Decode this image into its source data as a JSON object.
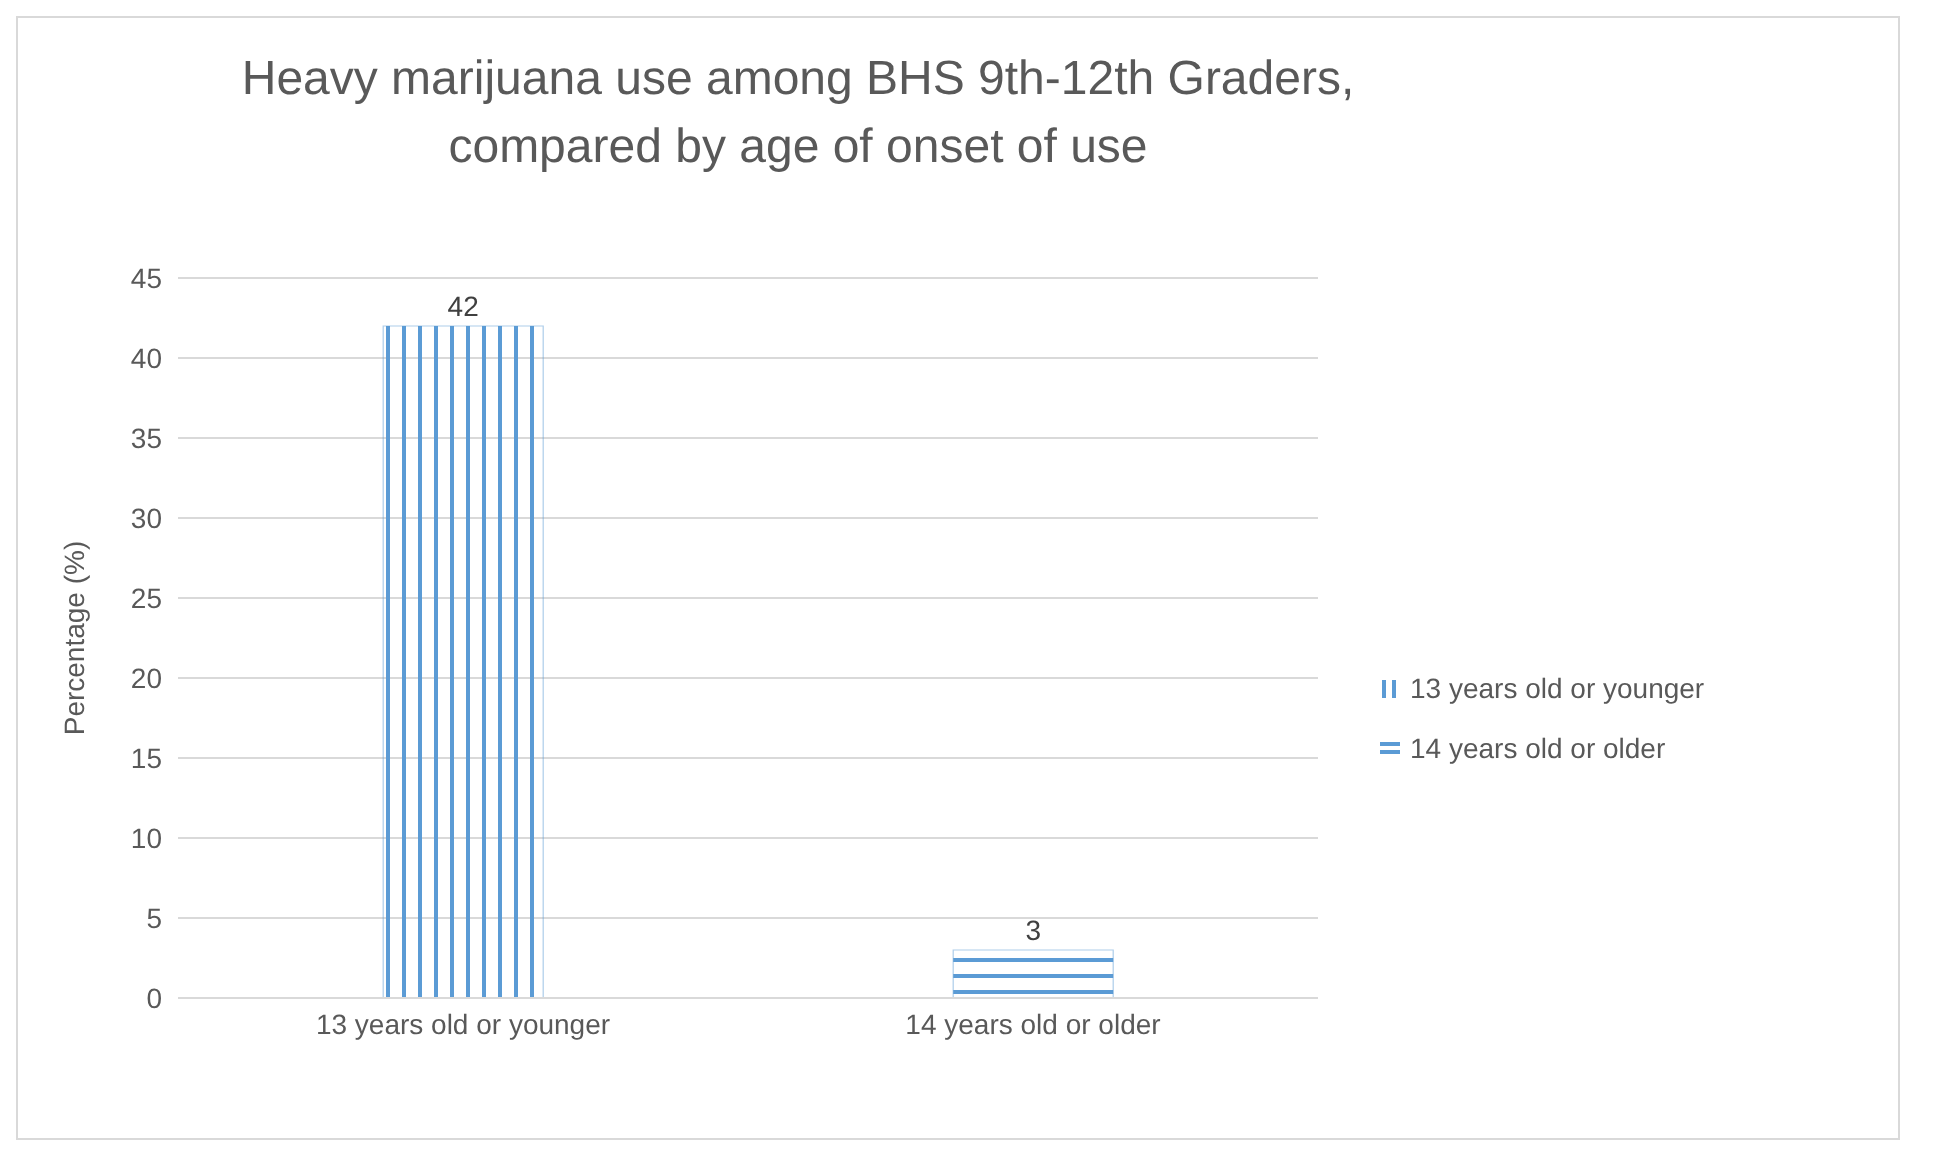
{
  "chart_data": {
    "type": "bar",
    "title": "Heavy marijuana use among BHS 9th-12th Graders, compared by age of onset of use",
    "ylabel": "Percentage (%)",
    "categories": [
      "13 years old or younger",
      "14 years old or older"
    ],
    "series": [
      {
        "name": "13 years old or younger",
        "color": "#5b9bd5",
        "values": [
          42,
          null
        ]
      },
      {
        "name": "14 years old or older",
        "color": "#5b9bd5",
        "values": [
          null,
          3
        ]
      }
    ],
    "stacked": true,
    "ylim": [
      0,
      45
    ],
    "yticks": [
      0,
      5,
      10,
      15,
      20,
      25,
      30,
      35,
      40,
      45
    ],
    "grid": "y",
    "legend": "right",
    "data_labels": true
  }
}
